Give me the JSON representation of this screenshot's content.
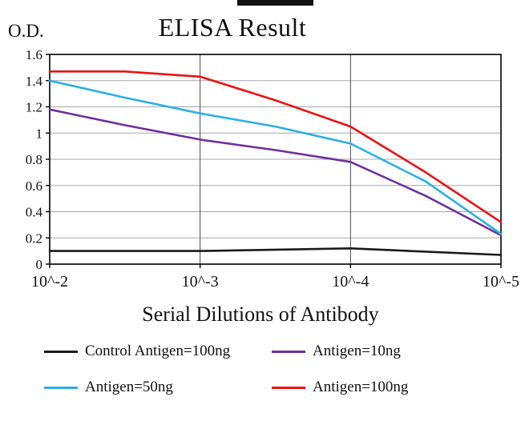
{
  "artifact": {
    "note": "black cropped strip at top center"
  },
  "chart_data": {
    "type": "line",
    "title": "ELISA Result",
    "ylabel": "O.D.",
    "xlabel": "Serial Dilutions of Antibody",
    "categories": [
      "10^-2",
      "10^-3",
      "10^-4",
      "10^-5"
    ],
    "ylim": [
      0,
      1.6
    ],
    "yticks": [
      0,
      0.2,
      0.4,
      0.6,
      0.8,
      1,
      1.2,
      1.4,
      1.6
    ],
    "ytick_labels": [
      "0",
      "0.2",
      "0.4",
      "0.6",
      "0.8",
      "1",
      "1.2",
      "1.4",
      "1.6"
    ],
    "grid": true,
    "legend_position": "bottom",
    "series": [
      {
        "name": "Control Antigen=100ng",
        "color": "#1a1a1a",
        "values": [
          0.1,
          0.1,
          0.12,
          0.07
        ],
        "points": [
          [
            0,
            0.1
          ],
          [
            1,
            0.1
          ],
          [
            2,
            0.12
          ],
          [
            3,
            0.07
          ]
        ]
      },
      {
        "name": "Antigen=10ng",
        "color": "#7030a0",
        "values": [
          1.18,
          0.95,
          0.78,
          0.22
        ],
        "points": [
          [
            0,
            1.18
          ],
          [
            0.5,
            1.06
          ],
          [
            1,
            0.95
          ],
          [
            1.5,
            0.87
          ],
          [
            2,
            0.78
          ],
          [
            2.5,
            0.52
          ],
          [
            3,
            0.22
          ]
        ]
      },
      {
        "name": "Antigen=50ng",
        "color": "#2ab0e8",
        "values": [
          1.4,
          1.15,
          0.92,
          0.23
        ],
        "points": [
          [
            0,
            1.4
          ],
          [
            0.5,
            1.27
          ],
          [
            1,
            1.15
          ],
          [
            1.5,
            1.05
          ],
          [
            2,
            0.92
          ],
          [
            2.5,
            0.63
          ],
          [
            3,
            0.23
          ]
        ]
      },
      {
        "name": "Antigen=100ng",
        "color": "#ee1111",
        "values": [
          1.47,
          1.43,
          1.05,
          0.32
        ],
        "points": [
          [
            0,
            1.47
          ],
          [
            0.5,
            1.47
          ],
          [
            1,
            1.43
          ],
          [
            1.5,
            1.25
          ],
          [
            2,
            1.05
          ],
          [
            2.5,
            0.7
          ],
          [
            3,
            0.32
          ]
        ]
      }
    ]
  }
}
